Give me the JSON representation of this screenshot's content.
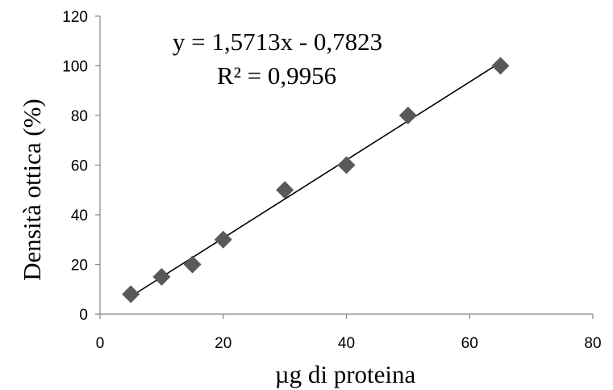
{
  "chart_data": {
    "type": "scatter",
    "xlabel": "µg di proteina",
    "ylabel": "Densità ottica (%)",
    "xlim": [
      0,
      80
    ],
    "ylim": [
      0,
      120
    ],
    "x_ticks": [
      0,
      20,
      40,
      60,
      80
    ],
    "y_ticks": [
      0,
      20,
      40,
      60,
      80,
      100,
      120
    ],
    "x_tick_labels": [
      "0",
      "20",
      "40",
      "60",
      "80"
    ],
    "y_tick_labels": [
      "0",
      "20",
      "40",
      "60",
      "80",
      "100",
      "120"
    ],
    "grid": false,
    "legend": "none",
    "series": [
      {
        "marker": "diamond",
        "color": "#595959",
        "x": [
          5,
          10,
          15,
          20,
          30,
          40,
          50,
          65
        ],
        "y": [
          8,
          15,
          20,
          30,
          50,
          60,
          80,
          100
        ]
      }
    ],
    "trendline": {
      "type": "linear",
      "slope": 1.5713,
      "intercept": -0.7823,
      "x_range": [
        5,
        65
      ],
      "color": "#000000",
      "equation_label": "y = 1,5713x - 0,7823",
      "r2_label": "R² = 0,9956"
    },
    "colors": {
      "axis": "#868686",
      "marker": "#595959",
      "trendline": "#000000"
    }
  }
}
